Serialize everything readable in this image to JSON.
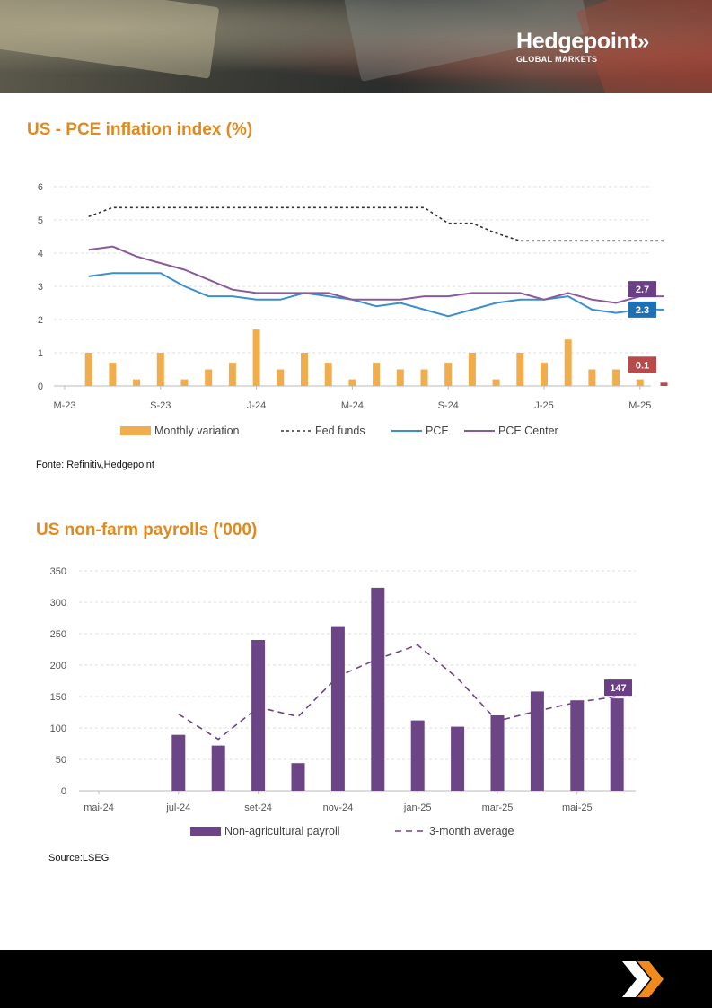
{
  "brand": {
    "name": "Hedgepoint",
    "chevrons": "»",
    "tagline": "GLOBAL MARKETS"
  },
  "charts": [
    {
      "title": "US - PCE inflation index (%)",
      "source": "Fonte: Refinitiv,Hedgepoint"
    },
    {
      "title": "US non-farm payrolls ('000)",
      "source": "Source:LSEG"
    }
  ],
  "chart_data": [
    {
      "type": "bar",
      "title": "US - PCE inflation index (%)",
      "ylim": [
        0,
        6
      ],
      "yticks": [
        "0",
        "1",
        "2",
        "3",
        "4",
        "5",
        "6"
      ],
      "xtick_labels": [
        "M-23",
        "S-23",
        "J-24",
        "M-24",
        "S-24",
        "J-25",
        "M-25"
      ],
      "grid": true,
      "legend_position": "bottom",
      "series": [
        {
          "name": "Monthly variation",
          "kind": "bar",
          "color": "#f0ad4e",
          "values": [
            null,
            1.0,
            0.7,
            0.2,
            1.0,
            0.2,
            0.5,
            0.7,
            1.7,
            0.5,
            1.0,
            0.7,
            0.2,
            0.7,
            0.5,
            0.5,
            0.7,
            1.0,
            0.2,
            1.0,
            0.7,
            1.4,
            0.5,
            0.5,
            0.2,
            0.1
          ]
        },
        {
          "name": "Fed funds",
          "kind": "dotted",
          "color": "#333333",
          "values": [
            null,
            5.1,
            5.37,
            5.37,
            5.37,
            5.37,
            5.37,
            5.37,
            5.37,
            5.37,
            5.37,
            5.37,
            5.37,
            5.37,
            5.37,
            5.37,
            4.9,
            4.9,
            4.6,
            4.37,
            4.37,
            4.37,
            4.37,
            4.37,
            4.37,
            4.37
          ]
        },
        {
          "name": "PCE",
          "kind": "line",
          "color": "#3a8fd1",
          "values": [
            null,
            3.3,
            3.4,
            3.4,
            3.4,
            3.0,
            2.7,
            2.7,
            2.6,
            2.6,
            2.8,
            2.7,
            2.6,
            2.4,
            2.5,
            2.3,
            2.1,
            2.3,
            2.5,
            2.6,
            2.6,
            2.7,
            2.3,
            2.2,
            2.3,
            2.3
          ]
        },
        {
          "name": "PCE Center",
          "kind": "line",
          "color": "#8a5a9a",
          "values": [
            null,
            4.1,
            4.2,
            3.9,
            3.7,
            3.5,
            3.2,
            2.9,
            2.8,
            2.8,
            2.8,
            2.8,
            2.6,
            2.6,
            2.6,
            2.7,
            2.7,
            2.8,
            2.8,
            2.8,
            2.6,
            2.8,
            2.6,
            2.5,
            2.7,
            2.7
          ]
        }
      ],
      "callouts": [
        {
          "label": "2.7",
          "series": "PCE Center",
          "color": "#6b3f86"
        },
        {
          "label": "2.3",
          "series": "PCE",
          "color": "#1f6fb5"
        },
        {
          "label": "0.1",
          "series": "Monthly variation",
          "color": "#b94a4a"
        }
      ]
    },
    {
      "type": "bar",
      "title": "US non-farm payrolls ('000)",
      "ylim": [
        0,
        350
      ],
      "yticks": [
        "0",
        "50",
        "100",
        "150",
        "200",
        "250",
        "300",
        "350"
      ],
      "xtick_labels": [
        "mai-24",
        "jul-24",
        "set-24",
        "nov-24",
        "jan-25",
        "mar-25",
        "mai-25"
      ],
      "grid": true,
      "legend_position": "bottom",
      "series": [
        {
          "name": "Non-agricultural payroll",
          "kind": "bar",
          "color": "#6b4585",
          "values": [
            null,
            null,
            89,
            72,
            240,
            44,
            262,
            323,
            112,
            102,
            120,
            158,
            144,
            147
          ]
        },
        {
          "name": "3-month average",
          "kind": "dashed",
          "color": "#6b4585",
          "values": [
            null,
            null,
            122,
            82,
            133,
            118,
            182,
            210,
            232,
            179,
            111,
            127,
            141,
            150
          ]
        }
      ],
      "callouts": [
        {
          "label": "147",
          "series": "Non-agricultural payroll",
          "color": "#6b3f86"
        }
      ]
    }
  ]
}
